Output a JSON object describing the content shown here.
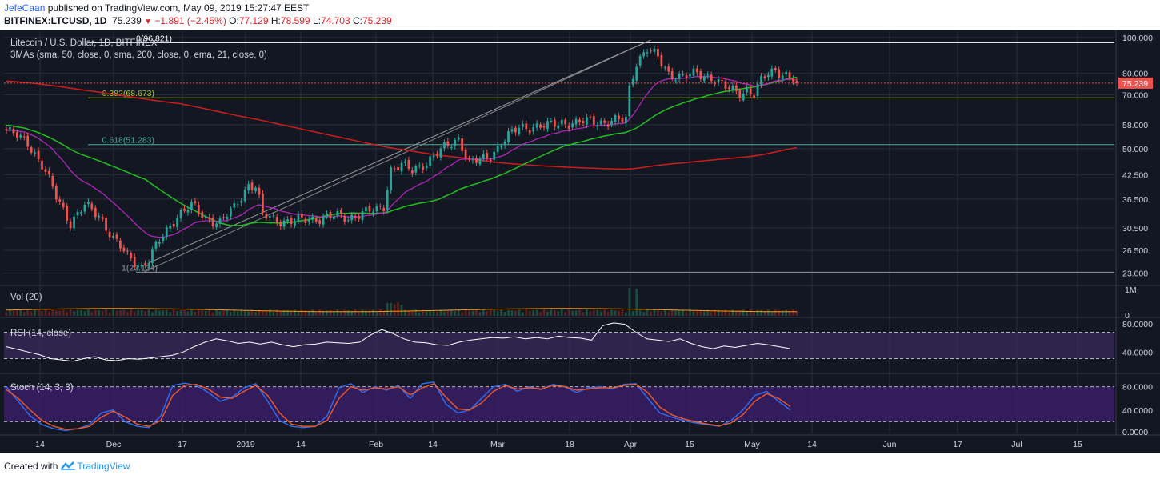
{
  "header": {
    "author": "JefeCaan",
    "published_text": "published on TradingView.com, May 09, 2019 15:27:47 EEST",
    "symbol": "BITFINEX:LTCUSD, 1D",
    "last": "75.239",
    "change": "−1.891 (−2.45%)",
    "o_label": "O:",
    "o_value": "77.129",
    "h_label": "H:",
    "h_value": "78.599",
    "l_label": "L:",
    "l_value": "74.703",
    "c_label": "C:",
    "c_value": "75.239",
    "down_arrow": "▼"
  },
  "legend": {
    "title": "Litecoin / U.S. Dollar, 1D, BITFINEX",
    "mas": "3MAs (sma, 50, close, 0, sma, 200, close, 0, ema, 21, close, 0)",
    "vol": "Vol (20)",
    "rsi": "RSI (14, close)",
    "stoch": "Stoch (14, 3, 3)"
  },
  "footer": {
    "prefix": "Created with",
    "brand": "TradingView"
  },
  "colors": {
    "background": "#131722",
    "grid": "#2a2e39",
    "up": "#26a69a",
    "down": "#ef5350",
    "sma50": "#20c020",
    "sma200": "#d01c1c",
    "ema21": "#b026b8",
    "fib": "#ffffff",
    "fib382": "#a4c639",
    "fib618": "#4caf9a",
    "channel": "#888888",
    "price_line": "#ef5350",
    "rsi_band": "#3a2a5a",
    "stoch_band": "#3a1d66",
    "stoch_k": "#2d6ff5",
    "stoch_d": "#f05a28",
    "rsi_line": "#ffffff"
  },
  "chart_data": {
    "type": "candlestick",
    "title": "Litecoin / U.S. Dollar, 1D, BITFINEX",
    "price_axis": {
      "scale": "log",
      "ticks": [
        "100.000",
        "80.000",
        "70.000",
        "58.000",
        "50.000",
        "42.500",
        "36.500",
        "30.500",
        "26.500",
        "23.000"
      ],
      "range": [
        21.5,
        104
      ]
    },
    "last_price_label": "75.239",
    "x_axis_labels": [
      "14",
      "Dec",
      "17",
      "2019",
      "14",
      "Feb",
      "14",
      "Mar",
      "18",
      "Apr",
      "15",
      "May",
      "14",
      "Jun",
      "17",
      "Jul",
      "15"
    ],
    "fib_levels": [
      {
        "label": "0(96.821)",
        "value": 96.821
      },
      {
        "label": "0.382(68.673)",
        "value": 68.673
      },
      {
        "label": "0.618(51.283)",
        "value": 51.283
      },
      {
        "label": "1(23.134)",
        "value": 23.134
      }
    ],
    "close_anchors": [
      [
        0,
        56.0
      ],
      [
        6,
        52.0
      ],
      [
        10,
        45.0
      ],
      [
        14,
        37.0
      ],
      [
        18,
        31.5
      ],
      [
        22,
        35.0
      ],
      [
        26,
        33.0
      ],
      [
        30,
        28.5
      ],
      [
        34,
        25.5
      ],
      [
        38,
        24.0
      ],
      [
        40,
        25.0
      ],
      [
        44,
        29.0
      ],
      [
        48,
        33.0
      ],
      [
        52,
        35.0
      ],
      [
        56,
        32.5
      ],
      [
        60,
        31.5
      ],
      [
        64,
        34.5
      ],
      [
        68,
        40.0
      ],
      [
        70,
        39.5
      ],
      [
        72,
        33.0
      ],
      [
        76,
        32.0
      ],
      [
        80,
        31.8
      ],
      [
        84,
        32.0
      ],
      [
        88,
        32.5
      ],
      [
        92,
        32.8
      ],
      [
        96,
        32.5
      ],
      [
        100,
        33.5
      ],
      [
        104,
        34.0
      ],
      [
        106,
        35.0
      ],
      [
        108,
        44.0
      ],
      [
        111,
        45.0
      ],
      [
        114,
        43.5
      ],
      [
        117,
        45.5
      ],
      [
        120,
        47.5
      ],
      [
        124,
        51.0
      ],
      [
        127,
        53.5
      ],
      [
        130,
        45.5
      ],
      [
        133,
        46.5
      ],
      [
        136,
        48.0
      ],
      [
        140,
        53.0
      ],
      [
        144,
        57.0
      ],
      [
        148,
        57.5
      ],
      [
        152,
        57.5
      ],
      [
        156,
        59.0
      ],
      [
        160,
        58.5
      ],
      [
        164,
        59.5
      ],
      [
        168,
        59.0
      ],
      [
        172,
        59.5
      ],
      [
        174,
        60.0
      ],
      [
        175,
        73.0
      ],
      [
        177,
        86.0
      ],
      [
        180,
        93.0
      ],
      [
        183,
        88.0
      ],
      [
        186,
        80.0
      ],
      [
        190,
        78.0
      ],
      [
        194,
        80.0
      ],
      [
        198,
        78.0
      ],
      [
        202,
        73.0
      ],
      [
        206,
        71.0
      ],
      [
        208,
        72.0
      ],
      [
        210,
        70.0
      ],
      [
        212,
        76.0
      ],
      [
        214,
        80.0
      ],
      [
        216,
        82.0
      ],
      [
        219,
        79.0
      ],
      [
        222,
        75.239
      ]
    ],
    "volume_max_label": "1M",
    "volume_axis": [
      "1M",
      "0"
    ],
    "rsi_axis": [
      "80.0000",
      "40.0000"
    ],
    "rsi_values": [
      48,
      44,
      40,
      36,
      30,
      28,
      26,
      30,
      33,
      28,
      27,
      30,
      29,
      31,
      33,
      35,
      40,
      48,
      55,
      60,
      57,
      53,
      55,
      52,
      55,
      51,
      48,
      51,
      52,
      55,
      54,
      53,
      55,
      66,
      74,
      68,
      60,
      55,
      54,
      51,
      50,
      55,
      58,
      60,
      62,
      61,
      63,
      60,
      62,
      60,
      64,
      62,
      61,
      58,
      80,
      84,
      82,
      70,
      60,
      58,
      56,
      60,
      53,
      48,
      45,
      49,
      47,
      50,
      53,
      51,
      48,
      45
    ],
    "stoch_axis": [
      "80.0000",
      "40.0000",
      "0.0000"
    ],
    "stoch_k": [
      80,
      55,
      30,
      15,
      8,
      5,
      8,
      15,
      35,
      40,
      20,
      12,
      10,
      30,
      82,
      86,
      82,
      70,
      55,
      62,
      78,
      85,
      55,
      22,
      12,
      10,
      12,
      30,
      78,
      85,
      70,
      80,
      74,
      82,
      60,
      85,
      88,
      50,
      35,
      40,
      60,
      80,
      84,
      72,
      80,
      75,
      84,
      80,
      70,
      78,
      80,
      76,
      84,
      85,
      60,
      35,
      28,
      22,
      18,
      15,
      12,
      22,
      40,
      65,
      72,
      55,
      40
    ],
    "stoch_d": [
      75,
      60,
      40,
      22,
      12,
      7,
      8,
      12,
      28,
      38,
      28,
      16,
      12,
      22,
      65,
      82,
      84,
      76,
      62,
      60,
      72,
      82,
      65,
      35,
      16,
      12,
      12,
      22,
      60,
      80,
      74,
      78,
      76,
      80,
      66,
      78,
      85,
      62,
      42,
      40,
      52,
      72,
      82,
      76,
      78,
      76,
      82,
      80,
      74,
      76,
      78,
      78,
      82,
      84,
      70,
      45,
      32,
      25,
      20,
      16,
      13,
      18,
      32,
      55,
      68,
      60,
      46
    ]
  }
}
